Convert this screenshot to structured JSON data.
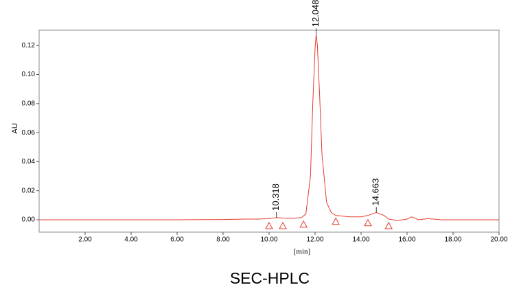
{
  "chart_data": {
    "type": "line",
    "caption": "SEC-HPLC",
    "x_label": "[min]",
    "y_label": "AU",
    "color": "#e8392e",
    "x": [
      0,
      2,
      4,
      6,
      8,
      9,
      9.5,
      10,
      10.318,
      10.6,
      11,
      11.4,
      11.6,
      11.8,
      11.9,
      12.0,
      12.048,
      12.1,
      12.2,
      12.3,
      12.5,
      12.7,
      12.9,
      13.5,
      14.0,
      14.3,
      14.663,
      15.0,
      15.2,
      15.6,
      16.0,
      16.2,
      16.5,
      16.9,
      17.5,
      18,
      20
    ],
    "values": [
      0,
      0,
      0,
      0,
      0.0002,
      0.0005,
      0.0005,
      0.0008,
      0.0015,
      0.0012,
      0.001,
      0.0015,
      0.004,
      0.03,
      0.08,
      0.118,
      0.128,
      0.12,
      0.085,
      0.045,
      0.012,
      0.005,
      0.003,
      0.002,
      0.002,
      0.003,
      0.005,
      0.003,
      0.0005,
      -0.0005,
      0.0005,
      0.002,
      0,
      0.0008,
      0,
      0,
      0
    ],
    "integration_marks": {
      "x": [
        10.0,
        10.6,
        11.5,
        12.9,
        14.3,
        15.2
      ],
      "y": [
        0,
        0,
        0.001,
        0.003,
        0.002,
        0
      ]
    },
    "annotations": [
      {
        "text": "10.318",
        "x": 10.318,
        "y": 0.0015
      },
      {
        "text": "12.048",
        "x": 12.048,
        "y": 0.128
      },
      {
        "text": "14.663",
        "x": 14.663,
        "y": 0.005
      }
    ],
    "xlim": [
      0,
      20
    ],
    "ylim": [
      -0.0085,
      0.1305
    ],
    "xticks": [
      {
        "value": 2,
        "label": "2.00"
      },
      {
        "value": 4,
        "label": "4.00"
      },
      {
        "value": 6,
        "label": "6.00"
      },
      {
        "value": 8,
        "label": "8.00"
      },
      {
        "value": 10,
        "label": "10.00"
      },
      {
        "value": 12,
        "label": "12.00"
      },
      {
        "value": 14,
        "label": "14.00"
      },
      {
        "value": 16,
        "label": "16.00"
      },
      {
        "value": 18,
        "label": "18.00"
      },
      {
        "value": 20,
        "label": "20.00"
      }
    ],
    "yticks": [
      {
        "value": 0,
        "label": "0.00"
      },
      {
        "value": 0.02,
        "label": "0.02"
      },
      {
        "value": 0.04,
        "label": "0.04"
      },
      {
        "value": 0.06,
        "label": "0.06"
      },
      {
        "value": 0.08,
        "label": "0.08"
      },
      {
        "value": 0.1,
        "label": "0.10"
      },
      {
        "value": 0.12,
        "label": "0.12"
      }
    ]
  }
}
